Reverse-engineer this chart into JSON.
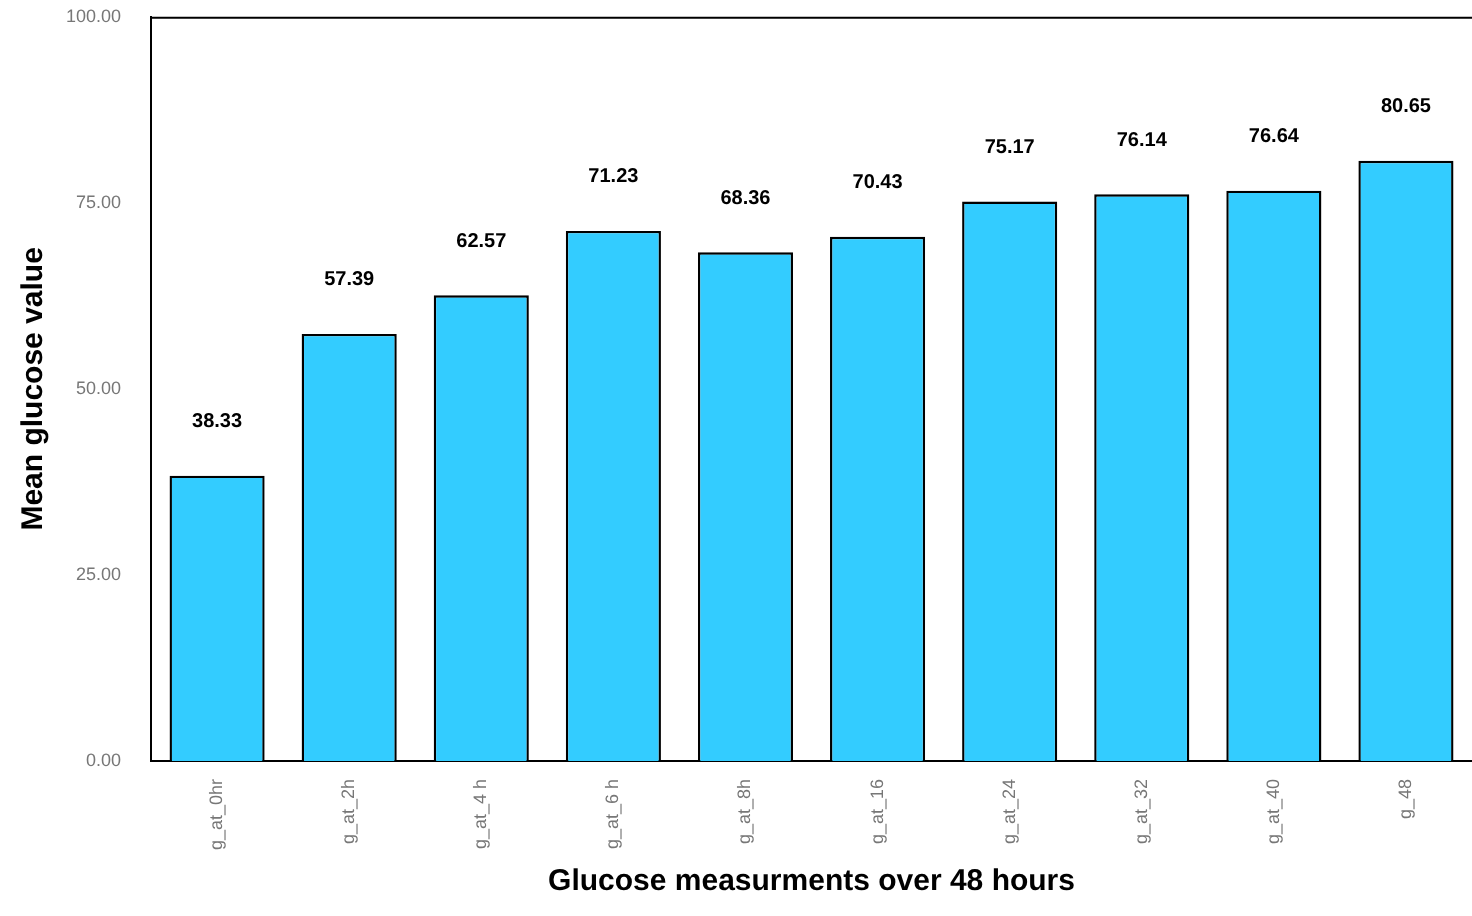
{
  "chart_data": {
    "type": "bar",
    "xlabel": "Glucose measurments over 48 hours",
    "ylabel": "Mean glucose value",
    "categories": [
      "g_at_0hr",
      "g_at_2h",
      "g_at_4 h",
      "g_at_6 h",
      "g_at_8h",
      "g_at_16",
      "g_at_24",
      "g_at_32",
      "g_at_40",
      "g_48"
    ],
    "values": [
      38.33,
      57.39,
      62.57,
      71.23,
      68.36,
      70.43,
      75.17,
      76.14,
      76.64,
      80.65
    ],
    "color": "#33ccff",
    "ylim": [
      0,
      100
    ],
    "yticks": [
      {
        "value": 0,
        "label": "0.00"
      },
      {
        "value": 25,
        "label": "25.00"
      },
      {
        "value": 50,
        "label": "50.00"
      },
      {
        "value": 75,
        "label": "75.00"
      },
      {
        "value": 100,
        "label": "100.00"
      }
    ],
    "data_labels": true,
    "grid": false,
    "legend": false
  }
}
